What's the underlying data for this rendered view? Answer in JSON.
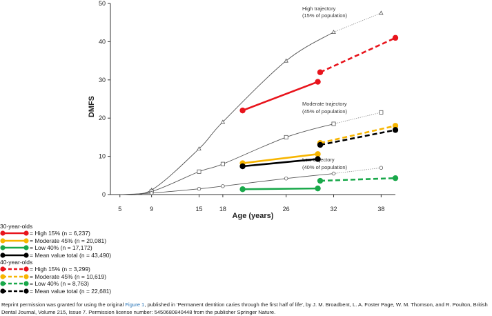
{
  "colors": {
    "high": "#e8141c",
    "moderate": "#f7b500",
    "low": "#19a84a",
    "mean": "#000000",
    "trajectory": "#555555",
    "link": "#1f6fb5"
  },
  "chart_data": {
    "type": "line",
    "xlabel": "Age (years)",
    "ylabel": "DMFS",
    "xlim": [
      3.8,
      39.8
    ],
    "ylim": [
      0,
      50
    ],
    "x_ticks": [
      5,
      9,
      15,
      18,
      26,
      32,
      38
    ],
    "y_ticks": [
      0,
      10,
      20,
      30,
      40,
      50
    ],
    "grid": false,
    "trajectories": [
      {
        "annotation_line1": "High trajectory",
        "annotation_line2": "(15% of population)",
        "marker": "triangle",
        "observed": [
          [
            5,
            0
          ],
          [
            9,
            1.2
          ],
          [
            15,
            12
          ],
          [
            18,
            19
          ],
          [
            26,
            35
          ],
          [
            32,
            42.5
          ]
        ],
        "projected": [
          38,
          47.5
        ]
      },
      {
        "annotation_line1": "Moderate trajectory",
        "annotation_line2": "(45% of population)",
        "marker": "square",
        "observed": [
          [
            5,
            0
          ],
          [
            9,
            0.8
          ],
          [
            15,
            6
          ],
          [
            18,
            8
          ],
          [
            26,
            15
          ],
          [
            32,
            18.5
          ]
        ],
        "projected": [
          38,
          21.5
        ]
      },
      {
        "annotation_line1": "Low trajectory",
        "annotation_line2": "(40% of population)",
        "marker": "circle",
        "observed": [
          [
            5,
            0
          ],
          [
            9,
            0.4
          ],
          [
            15,
            1.5
          ],
          [
            18,
            2.2
          ],
          [
            26,
            4.2
          ],
          [
            32,
            5.5
          ]
        ],
        "projected": [
          38,
          7
        ]
      }
    ],
    "series": [
      {
        "group": "30",
        "color_key": "high",
        "dashed": false,
        "points": [
          [
            20.5,
            22
          ],
          [
            30,
            29.5
          ]
        ]
      },
      {
        "group": "30",
        "color_key": "moderate",
        "dashed": false,
        "points": [
          [
            20.5,
            8.2
          ],
          [
            30,
            10.6
          ]
        ]
      },
      {
        "group": "30",
        "color_key": "low",
        "dashed": false,
        "points": [
          [
            20.5,
            1.4
          ],
          [
            30,
            1.6
          ]
        ]
      },
      {
        "group": "30",
        "color_key": "mean",
        "dashed": false,
        "points": [
          [
            20.5,
            7.4
          ],
          [
            30,
            9.3
          ]
        ]
      },
      {
        "group": "40",
        "color_key": "high",
        "dashed": true,
        "points": [
          [
            30.3,
            32
          ],
          [
            39.8,
            41
          ]
        ]
      },
      {
        "group": "40",
        "color_key": "moderate",
        "dashed": true,
        "points": [
          [
            30.3,
            13.5
          ],
          [
            39.8,
            18
          ]
        ]
      },
      {
        "group": "40",
        "color_key": "low",
        "dashed": true,
        "points": [
          [
            30.3,
            3.6
          ],
          [
            39.8,
            4.3
          ]
        ]
      },
      {
        "group": "40",
        "color_key": "mean",
        "dashed": true,
        "points": [
          [
            30.3,
            13
          ],
          [
            39.8,
            16.9
          ]
        ]
      }
    ]
  },
  "legend": {
    "groups": [
      {
        "title": "30-year-olds",
        "dashed": false,
        "items": [
          {
            "color_key": "high",
            "text": "= High 15% (n = 6,237)"
          },
          {
            "color_key": "moderate",
            "text": "= Moderate 45% (n = 20,081)"
          },
          {
            "color_key": "low",
            "text": "= Low 40% (n = 17,172)"
          },
          {
            "color_key": "mean",
            "text": "= Mean value total (n = 43,490)"
          }
        ]
      },
      {
        "title": "40-year-olds",
        "dashed": true,
        "items": [
          {
            "color_key": "high",
            "text": "= High 15% (n = 3,299)"
          },
          {
            "color_key": "moderate",
            "text": "= Moderate 45% (n = 10,619)"
          },
          {
            "color_key": "low",
            "text": "= Low 40% (n = 8,763)"
          },
          {
            "color_key": "mean",
            "text": "= Mean value total (n = 22,681)"
          }
        ]
      }
    ]
  },
  "caption": {
    "before_link": "Reprint permission was granted for using the original ",
    "link_text": "Figure 1",
    "after_link": ", published in 'Permanent dentition caries through the first half of life', by J. M. Broadbent, L. A. Foster Page, W. M. Thomson, and R. Poulton, British Dental Journal, Volume 215, Issue 7. Permission license number: 5450680840448 from the publisher Springer Nature."
  }
}
